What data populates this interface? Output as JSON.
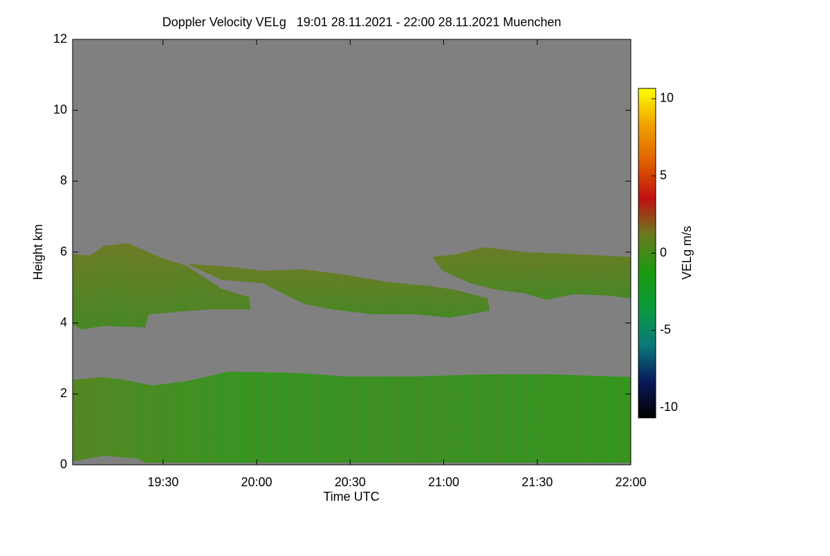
{
  "chart_data": {
    "type": "heatmap",
    "title": "Doppler Velocity VELg   19:01 28.11.2021 - 22:00 28.11.2021 Muenchen",
    "x_label": "Time UTC",
    "y_label": "Height km",
    "colorbar_label": "VELg m/s",
    "xlim": [
      19.0167,
      22.0
    ],
    "xticks": [
      {
        "value": 19.5,
        "label": "19:30"
      },
      {
        "value": 20.0,
        "label": "20:00"
      },
      {
        "value": 20.5,
        "label": "20:30"
      },
      {
        "value": 21.0,
        "label": "21:00"
      },
      {
        "value": 21.5,
        "label": "21:30"
      },
      {
        "value": 22.0,
        "label": "22:00"
      }
    ],
    "ylim": [
      0,
      12
    ],
    "yticks": [
      0,
      2,
      4,
      6,
      8,
      10,
      12
    ],
    "zlim": [
      -10.67,
      10.67
    ],
    "zticks": [
      -10,
      -5,
      0,
      5,
      10
    ],
    "colormap": [
      "#000000",
      "#0a1a5a",
      "#0a7a7a",
      "#0a9a3a",
      "#1a9a10",
      "#6a7a20",
      "#c01010",
      "#e06000",
      "#f0a000",
      "#ffff00"
    ]
  }
}
